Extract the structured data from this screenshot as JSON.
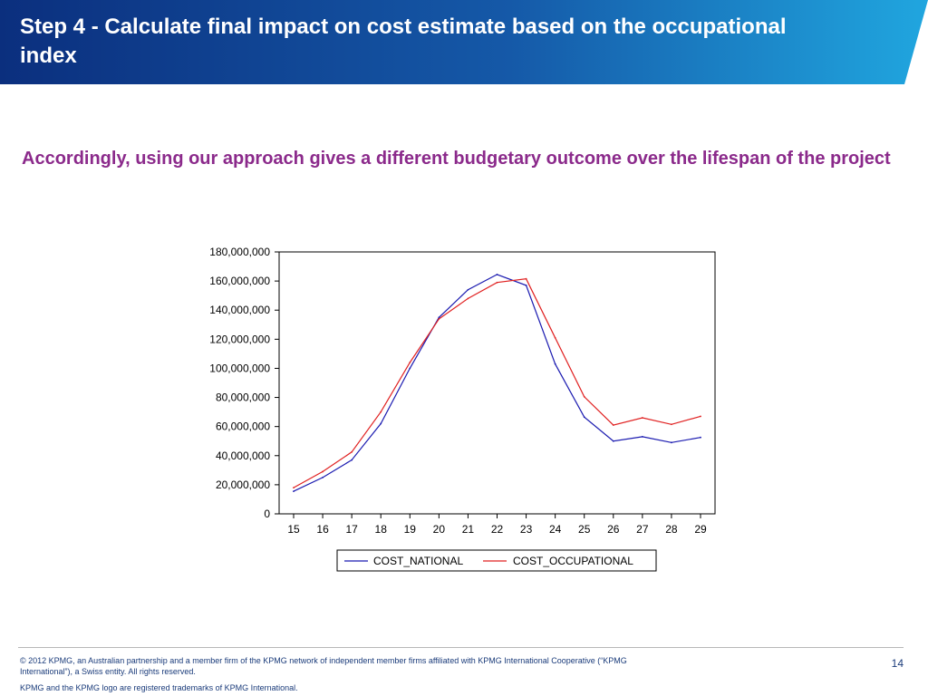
{
  "header": {
    "title": "Step 4 - Calculate final impact on cost estimate based on the occupational index"
  },
  "subtitle": "Accordingly, using our approach gives a different budgetary outcome over the lifespan of the project",
  "colors": {
    "header_dark": "#0b2f7e",
    "header_light": "#20a6df",
    "subtitle": "#8b2a8b",
    "national_line": "#1a1ab0",
    "occupational_line": "#e02020"
  },
  "chart_data": {
    "type": "line",
    "title": "",
    "xlabel": "",
    "ylabel": "",
    "x": [
      "15",
      "16",
      "17",
      "18",
      "19",
      "20",
      "21",
      "22",
      "23",
      "24",
      "25",
      "26",
      "27",
      "28",
      "29"
    ],
    "ylim": [
      0,
      180000000
    ],
    "yticks": [
      0,
      20000000,
      40000000,
      60000000,
      80000000,
      100000000,
      120000000,
      140000000,
      160000000,
      180000000
    ],
    "ytick_labels": [
      "0",
      "20,000,000",
      "40,000,000",
      "60,000,000",
      "80,000,000",
      "100,000,000",
      "120,000,000",
      "140,000,000",
      "160,000,000",
      "180,000,000"
    ],
    "series": [
      {
        "name": "COST_NATIONAL",
        "color": "#1a1ab0",
        "values": [
          15500000,
          25000000,
          37000000,
          62000000,
          100000000,
          135000000,
          154000000,
          164500000,
          157000000,
          103000000,
          66500000,
          50000000,
          53000000,
          49000000,
          52500000
        ]
      },
      {
        "name": "COST_OCCUPATIONAL",
        "color": "#e02020",
        "values": [
          18000000,
          29000000,
          42500000,
          70000000,
          104000000,
          134000000,
          148000000,
          159000000,
          161500000,
          121000000,
          80500000,
          61000000,
          66000000,
          61500000,
          67000000
        ]
      }
    ],
    "grid": false,
    "legend": "bottom"
  },
  "footer": {
    "copyright": "© 2012 KPMG, an Australian partnership and a member firm of the KPMG network of independent member firms affiliated with KPMG International Cooperative (“KPMG International”), a Swiss entity. All rights reserved.",
    "trademark": "KPMG and the KPMG logo are registered trademarks of KPMG International.",
    "page_number": "14"
  }
}
